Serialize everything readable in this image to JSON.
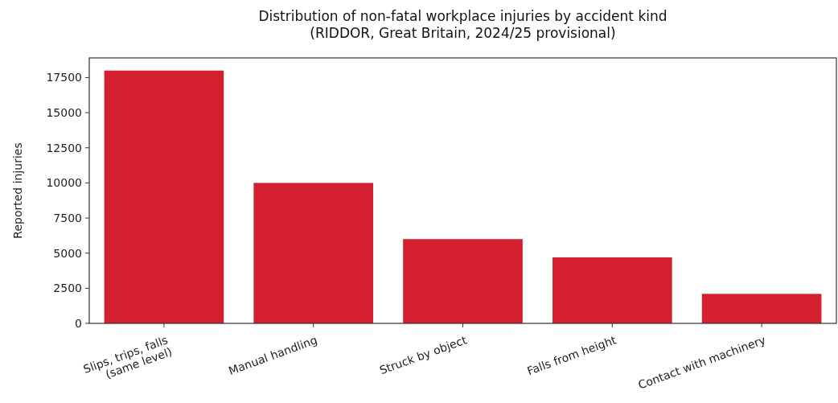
{
  "chart_data": {
    "type": "bar",
    "title": "Distribution of non-fatal workplace injuries by accident kind\n(RIDDOR, Great Britain, 2024/25 provisional)",
    "ylabel": "Reported injuries",
    "categories": [
      "Slips, trips, falls\n(same level)",
      "Manual handling",
      "Struck by object",
      "Falls from height",
      "Contact with machinery"
    ],
    "values": [
      18000,
      10000,
      6000,
      4700,
      2100
    ],
    "color": "#d41f2f",
    "ylim": [
      0,
      18900
    ],
    "yticks": [
      0,
      2500,
      5000,
      7500,
      10000,
      12500,
      15000,
      17500
    ],
    "grid": false
  }
}
